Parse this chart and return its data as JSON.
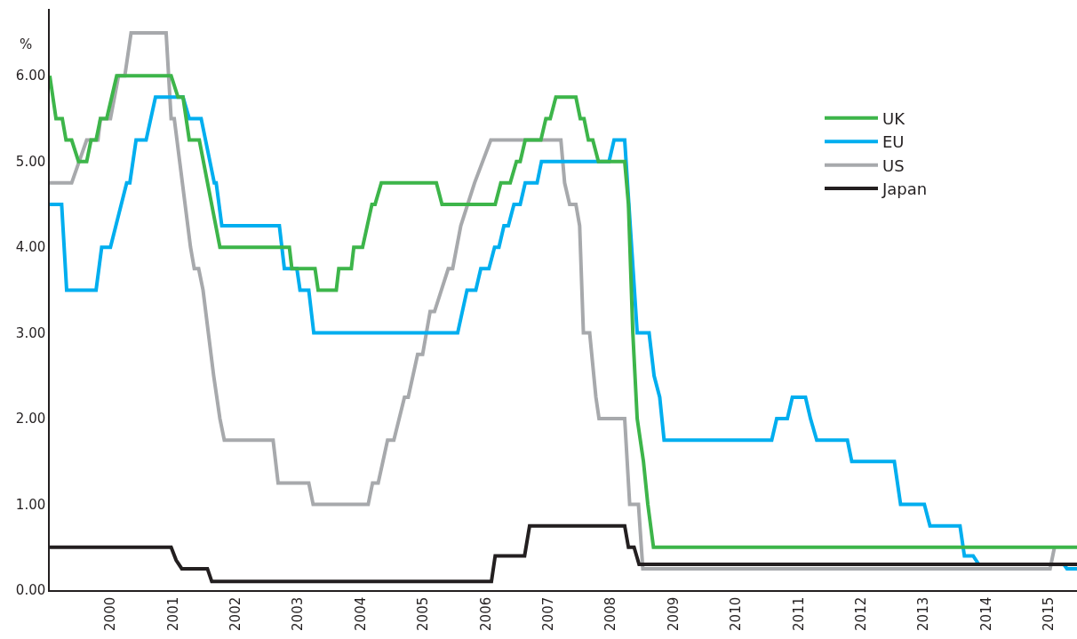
{
  "chart_data": {
    "type": "line",
    "ylabel": "%",
    "legend": "top right",
    "line_style": "solid",
    "marker": "none",
    "xlim": [
      1999.03,
      2015.45
    ],
    "ylim": [
      0,
      6.78
    ],
    "xticks": [
      2000,
      2001,
      2002,
      2003,
      2004,
      2005,
      2006,
      2007,
      2008,
      2009,
      2010,
      2011,
      2012,
      2013,
      2014,
      2015
    ],
    "yticks": [
      {
        "value": 0,
        "label": "0.00"
      },
      {
        "value": 1,
        "label": "1.00"
      },
      {
        "value": 2,
        "label": "2.00"
      },
      {
        "value": 3,
        "label": "3.00"
      },
      {
        "value": 4,
        "label": "4.00"
      },
      {
        "value": 5,
        "label": "5.00"
      },
      {
        "value": 6,
        "label": "6.00"
      }
    ],
    "series": [
      {
        "name": "US",
        "color": "#a7a9ac",
        "x": [
          1999.03,
          1999.38,
          1999.62,
          1999.8,
          1999.84,
          2000.0,
          2000.13,
          2000.23,
          2000.33,
          2000.89,
          2000.97,
          2001.02,
          2001.28,
          2001.34,
          2001.41,
          2001.48,
          2001.65,
          2001.75,
          2001.82,
          2002.6,
          2002.68,
          2003.17,
          2003.24,
          2004.12,
          2004.19,
          2004.28,
          2004.43,
          2004.53,
          2004.7,
          2004.76,
          2004.91,
          2004.99,
          2005.11,
          2005.18,
          2005.4,
          2005.47,
          2005.6,
          2005.82,
          2006.08,
          2007.2,
          2007.26,
          2007.34,
          2007.44,
          2007.5,
          2007.56,
          2007.66,
          2007.76,
          2007.81,
          2008.22,
          2008.3,
          2008.44,
          2008.51,
          2015.02,
          2015.09
        ],
        "values": [
          4.75,
          4.75,
          5.25,
          5.25,
          5.5,
          5.5,
          6.0,
          6.0,
          6.5,
          6.5,
          5.5,
          5.5,
          4.0,
          3.75,
          3.75,
          3.5,
          2.5,
          2.0,
          1.75,
          1.75,
          1.25,
          1.25,
          1.0,
          1.0,
          1.25,
          1.25,
          1.75,
          1.75,
          2.25,
          2.25,
          2.75,
          2.75,
          3.25,
          3.25,
          3.75,
          3.75,
          4.25,
          4.75,
          5.25,
          5.25,
          4.75,
          4.5,
          4.5,
          4.25,
          3.0,
          3.0,
          2.25,
          2.0,
          2.0,
          1.0,
          1.0,
          0.25,
          0.25,
          0.5
        ]
      },
      {
        "name": "EU",
        "color": "#00aeef",
        "x": [
          1999.03,
          1999.22,
          1999.3,
          1999.77,
          1999.86,
          2000.0,
          2000.26,
          2000.31,
          2000.41,
          2000.57,
          2000.72,
          2001.16,
          2001.26,
          2001.45,
          2001.66,
          2001.69,
          2001.78,
          2002.7,
          2002.78,
          2002.98,
          2003.03,
          2003.17,
          2003.25,
          2005.55,
          2005.7,
          2005.84,
          2005.92,
          2006.05,
          2006.14,
          2006.21,
          2006.29,
          2006.36,
          2006.45,
          2006.55,
          2006.63,
          2006.82,
          2006.89,
          2007.97,
          2008.05,
          2008.22,
          2008.42,
          2008.61,
          2008.69,
          2008.78,
          2008.85,
          2010.57,
          2010.65,
          2010.82,
          2010.9,
          2011.11,
          2011.19,
          2011.29,
          2011.78,
          2011.85,
          2012.53,
          2012.63,
          2013.01,
          2013.1,
          2013.58,
          2013.65,
          2013.79,
          2013.88,
          2015.24,
          2015.29,
          2015.45
        ],
        "values": [
          4.5,
          4.5,
          3.5,
          3.5,
          4.0,
          4.0,
          4.75,
          4.75,
          5.25,
          5.25,
          5.75,
          5.75,
          5.5,
          5.5,
          4.75,
          4.75,
          4.25,
          4.25,
          3.75,
          3.75,
          3.5,
          3.5,
          3.0,
          3.0,
          3.5,
          3.5,
          3.75,
          3.75,
          4.0,
          4.0,
          4.25,
          4.25,
          4.5,
          4.5,
          4.75,
          4.75,
          5.0,
          5.0,
          5.25,
          5.25,
          3.0,
          3.0,
          2.5,
          2.25,
          1.75,
          1.75,
          2.0,
          2.0,
          2.25,
          2.25,
          2.0,
          1.75,
          1.75,
          1.5,
          1.5,
          1.0,
          1.0,
          0.75,
          0.75,
          0.4,
          0.4,
          0.3,
          0.3,
          0.25,
          0.25
        ]
      },
      {
        "name": "UK",
        "color": "#3db54a",
        "x": [
          1999.03,
          1999.13,
          1999.23,
          1999.29,
          1999.38,
          1999.49,
          1999.62,
          1999.69,
          1999.77,
          1999.84,
          1999.94,
          2000.1,
          2000.97,
          2001.08,
          2001.16,
          2001.26,
          2001.42,
          2001.75,
          2002.86,
          2002.9,
          2003.27,
          2003.32,
          2003.61,
          2003.65,
          2003.85,
          2003.89,
          2004.03,
          2004.18,
          2004.23,
          2004.33,
          2005.21,
          2005.3,
          2006.15,
          2006.24,
          2006.39,
          2006.49,
          2006.55,
          2006.63,
          2006.88,
          2006.96,
          2007.03,
          2007.12,
          2007.44,
          2007.51,
          2007.57,
          2007.64,
          2007.71,
          2007.8,
          2008.22,
          2008.28,
          2008.35,
          2008.42,
          2008.52,
          2008.59,
          2008.68,
          2015.45
        ],
        "values": [
          6.0,
          5.5,
          5.5,
          5.25,
          5.25,
          5.0,
          5.0,
          5.25,
          5.25,
          5.5,
          5.5,
          6.0,
          6.0,
          5.75,
          5.75,
          5.25,
          5.25,
          4.0,
          4.0,
          3.75,
          3.75,
          3.5,
          3.5,
          3.75,
          3.75,
          4.0,
          4.0,
          4.5,
          4.5,
          4.75,
          4.75,
          4.5,
          4.5,
          4.75,
          4.75,
          5.0,
          5.0,
          5.25,
          5.25,
          5.5,
          5.5,
          5.75,
          5.75,
          5.5,
          5.5,
          5.25,
          5.25,
          5.0,
          5.0,
          4.5,
          3.0,
          2.0,
          1.5,
          1.0,
          0.5,
          0.5
        ]
      },
      {
        "name": "Japan",
        "color": "#231f20",
        "x": [
          1999.03,
          2000.97,
          2001.05,
          2001.14,
          2001.55,
          2001.62,
          2006.09,
          2006.15,
          2006.62,
          2006.7,
          2008.22,
          2008.28,
          2008.37,
          2008.45,
          2015.45
        ],
        "values": [
          0.5,
          0.5,
          0.35,
          0.25,
          0.25,
          0.1,
          0.1,
          0.4,
          0.4,
          0.75,
          0.75,
          0.5,
          0.5,
          0.3,
          0.3
        ]
      }
    ]
  }
}
